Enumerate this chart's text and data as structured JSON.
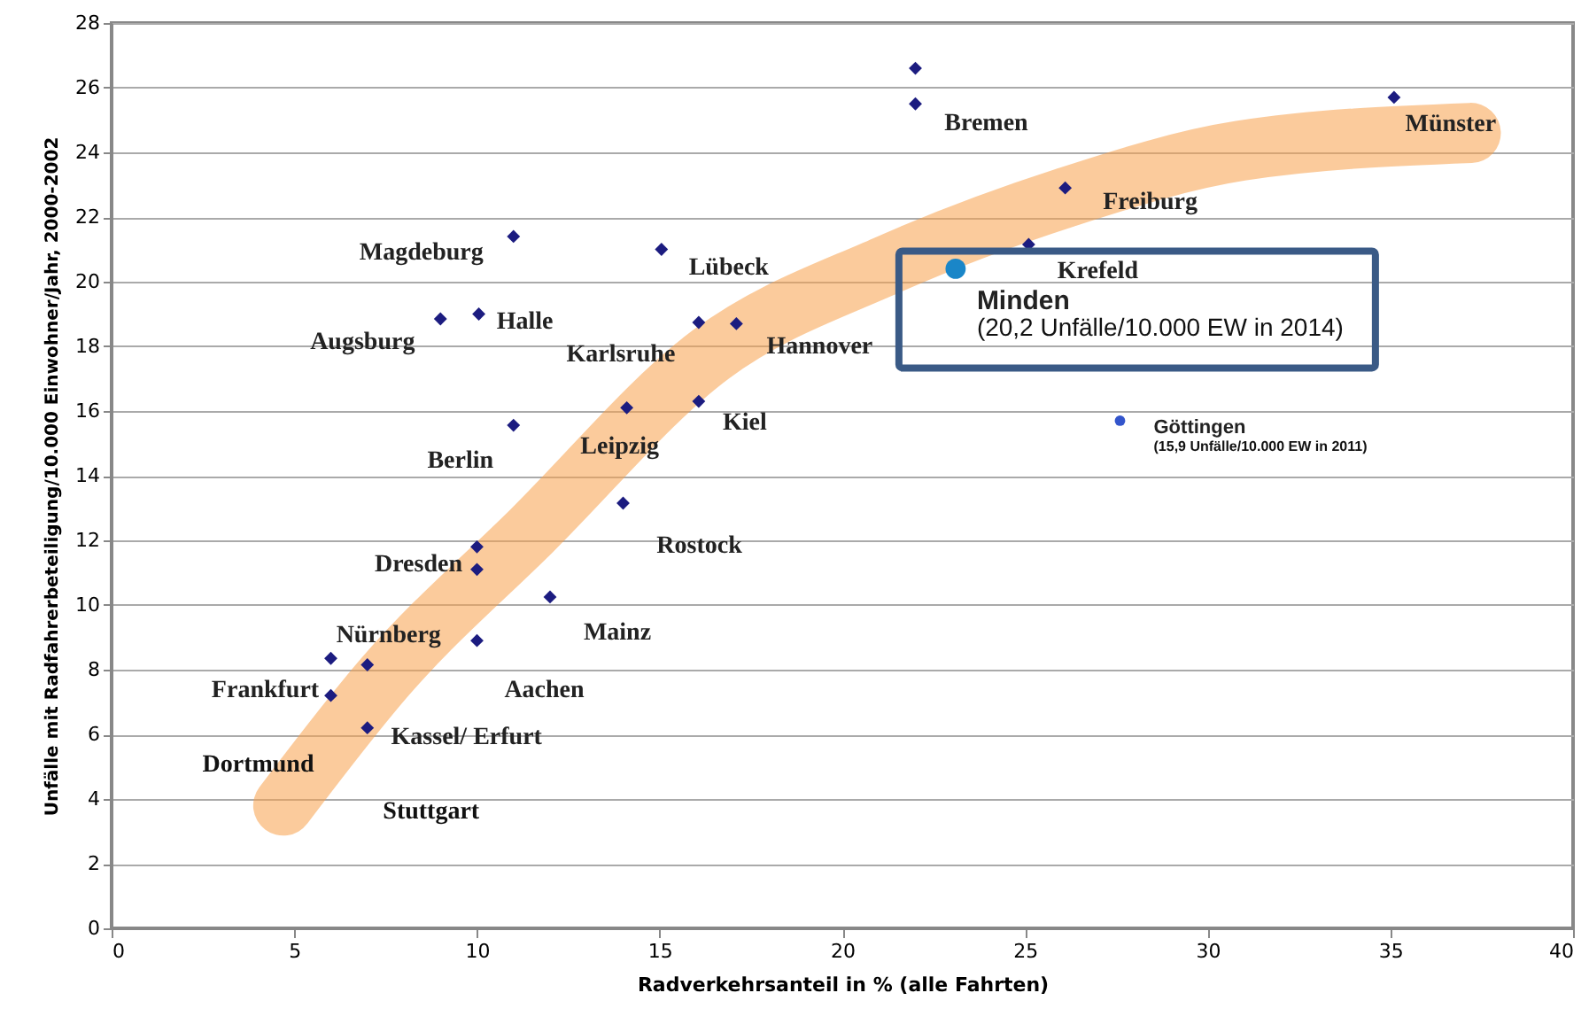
{
  "chart_data": {
    "type": "scatter",
    "xlabel": "Radverkehrsanteil in % (alle Fahrten)",
    "ylabel": "Unfälle mit Radfahrerbeteiligung/10.000 Einwohner/Jahr, 2000-2002",
    "xlim": [
      0,
      40
    ],
    "xticks": [
      0,
      5,
      10,
      15,
      20,
      25,
      30,
      35,
      40
    ],
    "ylim": [
      0,
      28
    ],
    "yticks": [
      0,
      2,
      4,
      6,
      8,
      10,
      12,
      14,
      16,
      18,
      20,
      22,
      24,
      26,
      28
    ],
    "grid": "y",
    "marker": "diamond",
    "series": [
      {
        "type": "line",
        "color": "#f7a14a",
        "line_style": "solid",
        "marker": "none",
        "x": [
          4.7,
          7.5,
          11.5,
          16.4,
          21.2,
          26.1,
          30.9,
          37.2
        ],
        "values": [
          3.8,
          7.8,
          12.3,
          17.75,
          20.5,
          22.6,
          24.05,
          24.6
        ]
      },
      {
        "name": "Bremen",
        "color": "#1c1c80",
        "x": [
          22,
          22
        ],
        "values": [
          26.6,
          25.5
        ]
      },
      {
        "name": "Münster",
        "color": "#1c1c80",
        "x": [
          35.1
        ],
        "values": [
          25.7
        ]
      },
      {
        "name": "Freiburg",
        "color": "#1c1c80",
        "x": [
          26.1
        ],
        "values": [
          22.9
        ]
      },
      {
        "name": "Krefeld",
        "color": "#1c1c80",
        "x": [
          25.1
        ],
        "values": [
          21.15
        ]
      },
      {
        "name": "Magdeburg",
        "color": "#1c1c80",
        "x": [
          11.0
        ],
        "values": [
          21.4
        ]
      },
      {
        "name": "Lübeck",
        "color": "#1c1c80",
        "x": [
          15.05
        ],
        "values": [
          21.0
        ]
      },
      {
        "name": "Halle",
        "color": "#1c1c80",
        "x": [
          10.05
        ],
        "values": [
          19.0
        ]
      },
      {
        "name": "Augsburg",
        "color": "#1c1c80",
        "x": [
          9.0
        ],
        "values": [
          18.85
        ]
      },
      {
        "name": "Karlsruhe",
        "color": "#1c1c80",
        "x": [
          16.07
        ],
        "values": [
          18.74
        ]
      },
      {
        "name": "Hannover",
        "color": "#1c1c80",
        "x": [
          17.1
        ],
        "values": [
          18.7
        ]
      },
      {
        "name": "Berlin",
        "color": "#1c1c80",
        "x": [
          11.0
        ],
        "values": [
          15.56
        ]
      },
      {
        "name": "Leipzig",
        "color": "#1c1c80",
        "x": [
          14.1
        ],
        "values": [
          16.1
        ]
      },
      {
        "name": "Kiel",
        "color": "#1c1c80",
        "x": [
          16.07
        ],
        "values": [
          16.3
        ]
      },
      {
        "name": "Rostock",
        "color": "#1c1c80",
        "x": [
          14.0
        ],
        "values": [
          13.15
        ]
      },
      {
        "name": "Dresden",
        "color": "#1c1c80",
        "x": [
          10,
          10
        ],
        "values": [
          11.8,
          11.1
        ]
      },
      {
        "name": "Mainz",
        "color": "#1c1c80",
        "x": [
          12.0
        ],
        "values": [
          10.25
        ]
      },
      {
        "name": "Aachen",
        "color": "#1c1c80",
        "x": [
          10
        ],
        "values": [
          8.9
        ]
      },
      {
        "name": "Nürnberg",
        "color": "#1c1c80",
        "x": [
          6.0,
          7.0
        ],
        "values": [
          8.35,
          8.15
        ]
      },
      {
        "name": "Frankfurt",
        "color": "#1c1c80",
        "x": [
          6.0
        ],
        "values": [
          7.2
        ]
      },
      {
        "name": "Kassel/ Erfurt",
        "color": "#1c1c80",
        "x": [
          7.0
        ],
        "values": [
          6.2
        ]
      },
      {
        "name": "Minden",
        "color": "#1a86c8",
        "marker": "circle",
        "x": [
          23.1
        ],
        "values": [
          20.4
        ]
      },
      {
        "name": "Göttingen",
        "color": "#3355cc",
        "marker": "circle",
        "x": [
          27.6
        ],
        "values": [
          15.7
        ]
      }
    ],
    "annotations": [
      "(20,2 Unfälle/10.000 EW in 2014)",
      "(15,9 Unfälle/10.000 EW in 2011)",
      "Dortmund",
      "Stuttgart"
    ]
  }
}
